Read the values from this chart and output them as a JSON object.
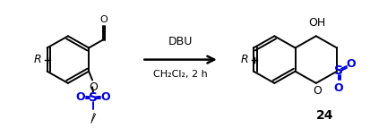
{
  "background_color": "#ffffff",
  "reagent_line1": "DBU",
  "reagent_line2": "CH₂Cl₂, 2 h",
  "compound_number": "24",
  "black": "#000000",
  "blue": "#0000dd",
  "figsize": [
    4.13,
    1.43
  ],
  "dpi": 100
}
